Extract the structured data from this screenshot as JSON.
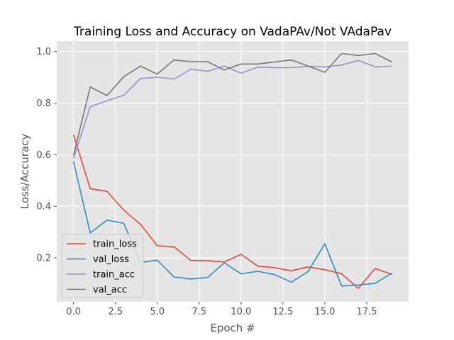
{
  "chart_data": {
    "type": "line",
    "title": "Training Loss and Accuracy on VadaPAv/Not VAdaPav",
    "xlabel": "Epoch #",
    "ylabel": "Loss/Accuracy",
    "xlim": [
      -1.0,
      20.0
    ],
    "ylim": [
      0.03,
      1.04
    ],
    "xticks": [
      0.0,
      2.5,
      5.0,
      7.5,
      10.0,
      12.5,
      15.0,
      17.5
    ],
    "yticks": [
      0.2,
      0.4,
      0.6,
      0.8,
      1.0
    ],
    "x": [
      0,
      1,
      2,
      3,
      4,
      5,
      6,
      7,
      8,
      9,
      10,
      11,
      12,
      13,
      14,
      15,
      16,
      17,
      18,
      19
    ],
    "legend_position": "lower-left",
    "grid": true,
    "background": "#e5e5e5",
    "series": [
      {
        "name": "train_loss",
        "color": "#e24a33",
        "values": [
          0.677,
          0.468,
          0.458,
          0.385,
          0.33,
          0.247,
          0.243,
          0.19,
          0.189,
          0.184,
          0.214,
          0.168,
          0.162,
          0.15,
          0.165,
          0.154,
          0.139,
          0.082,
          0.159,
          0.136
        ]
      },
      {
        "name": "val_loss",
        "color": "#348abd",
        "values": [
          0.573,
          0.297,
          0.346,
          0.334,
          0.182,
          0.191,
          0.126,
          0.118,
          0.124,
          0.181,
          0.138,
          0.148,
          0.135,
          0.106,
          0.147,
          0.255,
          0.091,
          0.095,
          0.101,
          0.141
        ]
      },
      {
        "name": "train_acc",
        "color": "#988ed5",
        "values": [
          0.585,
          0.786,
          0.809,
          0.83,
          0.895,
          0.9,
          0.893,
          0.931,
          0.923,
          0.943,
          0.916,
          0.939,
          0.937,
          0.937,
          0.942,
          0.94,
          0.947,
          0.965,
          0.94,
          0.943
        ]
      },
      {
        "name": "val_acc",
        "color": "#777777",
        "values": [
          0.597,
          0.862,
          0.829,
          0.902,
          0.943,
          0.912,
          0.967,
          0.96,
          0.96,
          0.928,
          0.951,
          0.951,
          0.959,
          0.967,
          0.943,
          0.919,
          0.992,
          0.984,
          0.992,
          0.959
        ]
      }
    ]
  }
}
